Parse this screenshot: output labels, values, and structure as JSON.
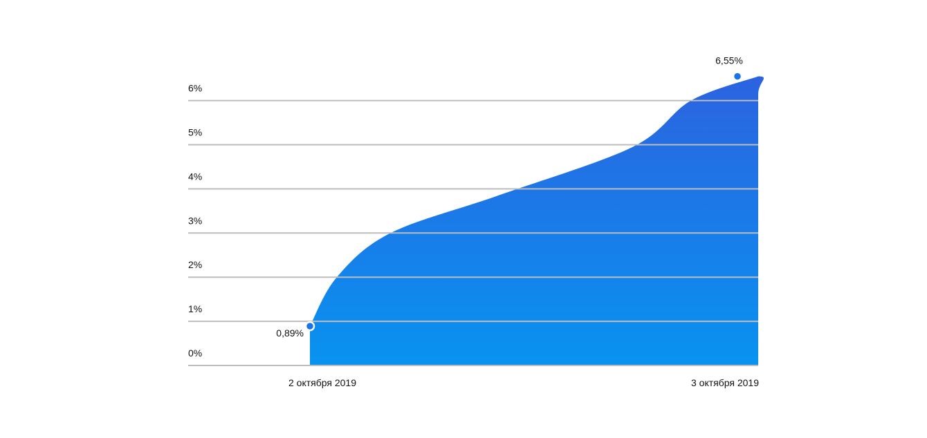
{
  "chart_data": {
    "type": "area",
    "x": [
      "2 октября 2019",
      "3 октября 2019"
    ],
    "series": [
      {
        "values": [
          0.89,
          6.55
        ]
      }
    ],
    "curve_samples": [
      {
        "t": 0.0,
        "y": 0.89
      },
      {
        "t": 0.06,
        "y": 2.0
      },
      {
        "t": 0.18,
        "y": 3.0
      },
      {
        "t": 0.42,
        "y": 3.85
      },
      {
        "t": 0.72,
        "y": 4.95
      },
      {
        "t": 0.85,
        "y": 6.0
      },
      {
        "t": 1.0,
        "y": 6.55
      }
    ],
    "y_ticks": [
      "0%",
      "1%",
      "2%",
      "3%",
      "4%",
      "5%",
      "6%"
    ],
    "y_tick_values": [
      0,
      1,
      2,
      3,
      4,
      5,
      6
    ],
    "data_labels": [
      "0,89%",
      "6,55%"
    ],
    "ylim": [
      0,
      6.9
    ],
    "grid": true,
    "legend": "none",
    "colors": {
      "fill_top": "#2c63e0",
      "fill_bottom": "#0893f0",
      "grid": "#bdbdbd",
      "point": "#1a73e8"
    }
  }
}
